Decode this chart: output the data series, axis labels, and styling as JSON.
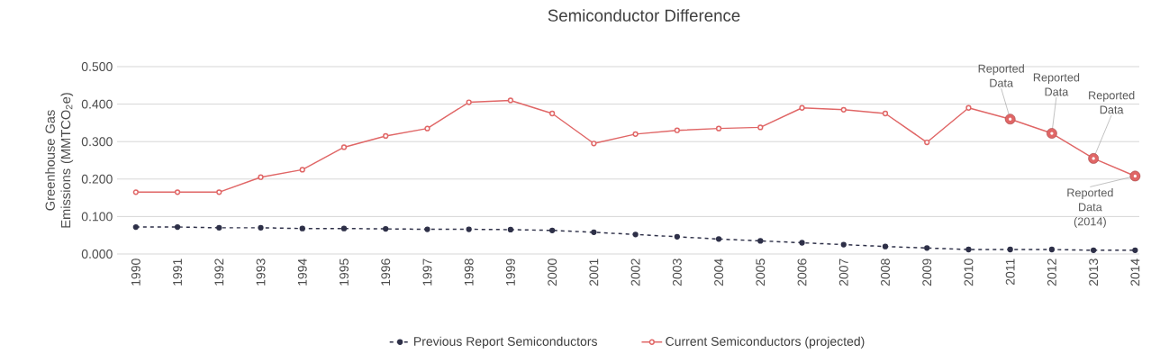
{
  "chart_data": {
    "type": "line",
    "title": "Semiconductor Difference",
    "ylabel": "Greenhouse Gas Emissions (MMTCO$_{2}$e)",
    "categories": [
      "1990",
      "1991",
      "1992",
      "1993",
      "1994",
      "1995",
      "1996",
      "1997",
      "1998",
      "1999",
      "2000",
      "2001",
      "2002",
      "2003",
      "2004",
      "2005",
      "2006",
      "2007",
      "2008",
      "2009",
      "2010",
      "2011",
      "2012",
      "2013",
      "2014"
    ],
    "series": [
      {
        "name": "Previous Report Semiconductors",
        "color": "#2e3048",
        "line_style": "dashed",
        "marker": "circle",
        "values": [
          0.072,
          0.072,
          0.07,
          0.07,
          0.068,
          0.068,
          0.067,
          0.066,
          0.066,
          0.065,
          0.063,
          0.058,
          0.052,
          0.046,
          0.04,
          0.035,
          0.03,
          0.025,
          0.02,
          0.016,
          0.012,
          0.012,
          0.012,
          0.01,
          0.01
        ]
      },
      {
        "name": "Current Semiconductors (projected)",
        "color": "#e06666",
        "line_style": "solid",
        "marker": "circle",
        "values": [
          0.165,
          0.165,
          0.165,
          0.205,
          0.225,
          0.285,
          0.315,
          0.335,
          0.405,
          0.41,
          0.375,
          0.295,
          0.32,
          0.33,
          0.335,
          0.338,
          0.39,
          0.385,
          0.375,
          0.298,
          0.39,
          0.36,
          0.322,
          0.255,
          0.208
        ]
      }
    ],
    "ylim": [
      0,
      0.5
    ],
    "yticks": [
      {
        "value": 0,
        "label": "0.000"
      },
      {
        "value": 0.1,
        "label": "0.100"
      },
      {
        "value": 0.2,
        "label": "0.200"
      },
      {
        "value": 0.3,
        "label": "0.300"
      },
      {
        "value": 0.4,
        "label": "0.400"
      },
      {
        "value": 0.5,
        "label": "0.500"
      }
    ],
    "annotations": [
      {
        "text": "Reported Data",
        "x": "2011",
        "y": 0.36
      },
      {
        "text": "Reported Data",
        "x": "2012",
        "y": 0.322
      },
      {
        "text": "Reported Data",
        "x": "2013",
        "y": 0.255
      },
      {
        "text": "Reported Data (2014)",
        "x": "2014",
        "y": 0.208
      }
    ],
    "grid": "y",
    "legend": "bottom"
  }
}
